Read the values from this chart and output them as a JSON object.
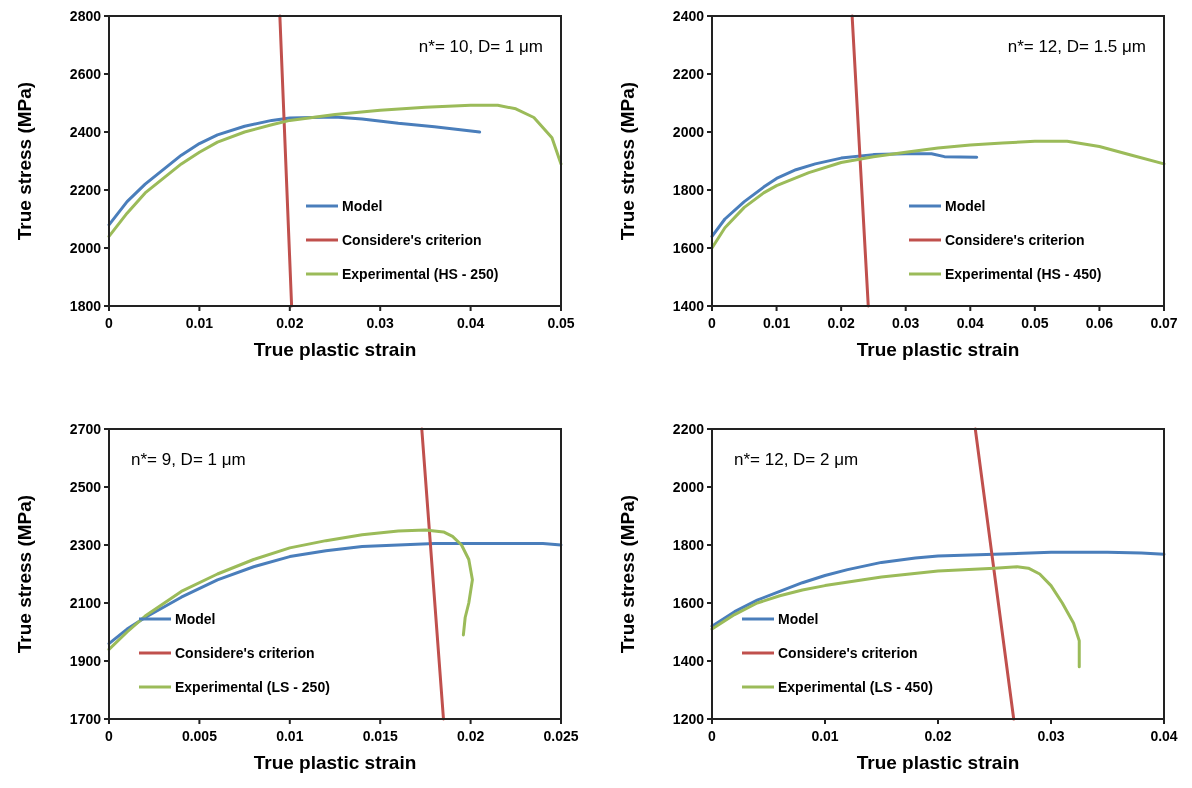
{
  "chart_data": [
    {
      "type": "line",
      "xlabel": "True plastic strain",
      "ylabel": "True stress (MPa)",
      "xlim": [
        0,
        0.05
      ],
      "ylim": [
        1800,
        2800
      ],
      "xticks": [
        0,
        0.01,
        0.02,
        0.03,
        0.04,
        0.05
      ],
      "yticks": [
        1800,
        2000,
        2200,
        2400,
        2600,
        2800
      ],
      "legend": "bottom right",
      "annotations": [
        "n*= 10, D= 1 μm"
      ],
      "series": [
        {
          "name": "Model",
          "color": "#4a7ebb",
          "x": [
            0,
            0.002,
            0.004,
            0.006,
            0.008,
            0.01,
            0.012,
            0.015,
            0.018,
            0.02,
            0.025,
            0.028,
            0.032,
            0.036,
            0.041
          ],
          "values": [
            2080,
            2160,
            2220,
            2270,
            2320,
            2360,
            2390,
            2420,
            2440,
            2448,
            2452,
            2445,
            2430,
            2418,
            2400
          ]
        },
        {
          "name": "Considere's criterion",
          "color": "#c0504d",
          "x": [
            0.0189,
            0.0202
          ],
          "values": [
            2800,
            1800
          ]
        },
        {
          "name": "Experimental (HS - 250)",
          "color": "#9bbb59",
          "x": [
            0,
            0.002,
            0.004,
            0.006,
            0.008,
            0.01,
            0.012,
            0.015,
            0.018,
            0.02,
            0.025,
            0.03,
            0.035,
            0.04,
            0.043,
            0.045,
            0.047,
            0.049,
            0.05
          ],
          "values": [
            2040,
            2120,
            2190,
            2240,
            2290,
            2330,
            2365,
            2400,
            2425,
            2440,
            2460,
            2475,
            2485,
            2492,
            2492,
            2480,
            2450,
            2380,
            2290
          ]
        }
      ]
    },
    {
      "type": "line",
      "xlabel": "True plastic strain",
      "ylabel": "True stress (MPa)",
      "xlim": [
        0,
        0.07
      ],
      "ylim": [
        1400,
        2400
      ],
      "xticks": [
        0,
        0.01,
        0.02,
        0.03,
        0.04,
        0.05,
        0.06,
        0.07
      ],
      "yticks": [
        1400,
        1600,
        1800,
        2000,
        2200,
        2400
      ],
      "legend": "bottom right",
      "annotations": [
        "n*= 12, D= 1.5 μm"
      ],
      "series": [
        {
          "name": "Model",
          "color": "#4a7ebb",
          "x": [
            0,
            0.002,
            0.005,
            0.008,
            0.01,
            0.013,
            0.016,
            0.02,
            0.025,
            0.03,
            0.034,
            0.036,
            0.041
          ],
          "values": [
            1640,
            1700,
            1760,
            1810,
            1840,
            1870,
            1890,
            1910,
            1922,
            1925,
            1925,
            1915,
            1913
          ]
        },
        {
          "name": "Considere's criterion",
          "color": "#c0504d",
          "x": [
            0.0217,
            0.0242
          ],
          "values": [
            2400,
            1400
          ]
        },
        {
          "name": "Experimental (HS - 450)",
          "color": "#9bbb59",
          "x": [
            0,
            0.002,
            0.005,
            0.008,
            0.01,
            0.015,
            0.02,
            0.025,
            0.03,
            0.035,
            0.04,
            0.045,
            0.05,
            0.055,
            0.06,
            0.065,
            0.07
          ],
          "values": [
            1600,
            1670,
            1740,
            1790,
            1815,
            1860,
            1895,
            1915,
            1930,
            1945,
            1955,
            1962,
            1968,
            1968,
            1950,
            1920,
            1890
          ]
        }
      ]
    },
    {
      "type": "line",
      "xlabel": "True plastic strain",
      "ylabel": "True stress (MPa)",
      "xlim": [
        0,
        0.025
      ],
      "ylim": [
        1700,
        2700
      ],
      "xticks": [
        0,
        0.005,
        0.01,
        0.015,
        0.02,
        0.025
      ],
      "yticks": [
        1700,
        1900,
        2100,
        2300,
        2500,
        2700
      ],
      "legend": "bottom left",
      "annotations": [
        "n*= 9, D= 1 μm"
      ],
      "series": [
        {
          "name": "Model",
          "color": "#4a7ebb",
          "x": [
            0,
            0.001,
            0.002,
            0.004,
            0.006,
            0.008,
            0.01,
            0.012,
            0.014,
            0.016,
            0.018,
            0.02,
            0.022,
            0.024,
            0.025
          ],
          "values": [
            1960,
            2010,
            2050,
            2120,
            2180,
            2225,
            2260,
            2280,
            2295,
            2300,
            2305,
            2305,
            2305,
            2305,
            2300
          ]
        },
        {
          "name": "Considere's criterion",
          "color": "#c0504d",
          "x": [
            0.0173,
            0.0185
          ],
          "values": [
            2700,
            1700
          ]
        },
        {
          "name": "Experimental (LS - 250)",
          "color": "#9bbb59",
          "x": [
            0,
            0.001,
            0.002,
            0.004,
            0.006,
            0.008,
            0.01,
            0.012,
            0.014,
            0.016,
            0.0175,
            0.0185,
            0.019,
            0.0195,
            0.0199,
            0.0201,
            0.0199,
            0.0197,
            0.0196
          ],
          "values": [
            1940,
            2000,
            2055,
            2140,
            2200,
            2250,
            2290,
            2315,
            2335,
            2348,
            2352,
            2345,
            2330,
            2300,
            2250,
            2180,
            2100,
            2050,
            1990
          ]
        }
      ]
    },
    {
      "type": "line",
      "xlabel": "True plastic strain",
      "ylabel": "True stress (MPa)",
      "xlim": [
        0,
        0.04
      ],
      "ylim": [
        1200,
        2200
      ],
      "xticks": [
        0,
        0.01,
        0.02,
        0.03,
        0.04
      ],
      "yticks": [
        1200,
        1400,
        1600,
        1800,
        2000,
        2200
      ],
      "legend": "bottom left",
      "annotations": [
        "n*= 12, D= 2 μm"
      ],
      "series": [
        {
          "name": "Model",
          "color": "#4a7ebb",
          "x": [
            0,
            0.002,
            0.004,
            0.006,
            0.008,
            0.01,
            0.012,
            0.015,
            0.018,
            0.02,
            0.025,
            0.03,
            0.035,
            0.038,
            0.04
          ],
          "values": [
            1520,
            1570,
            1610,
            1640,
            1670,
            1695,
            1715,
            1740,
            1755,
            1762,
            1768,
            1775,
            1775,
            1772,
            1768
          ]
        },
        {
          "name": "Considere's criterion",
          "color": "#c0504d",
          "x": [
            0.0233,
            0.0267
          ],
          "values": [
            2200,
            1200
          ]
        },
        {
          "name": "Experimental (LS -  450)",
          "color": "#9bbb59",
          "x": [
            0,
            0.002,
            0.004,
            0.006,
            0.008,
            0.01,
            0.015,
            0.02,
            0.025,
            0.027,
            0.028,
            0.029,
            0.03,
            0.031,
            0.032,
            0.0325,
            0.0325
          ],
          "values": [
            1510,
            1560,
            1600,
            1625,
            1645,
            1660,
            1690,
            1710,
            1720,
            1725,
            1720,
            1700,
            1660,
            1600,
            1530,
            1470,
            1380
          ]
        }
      ]
    }
  ]
}
